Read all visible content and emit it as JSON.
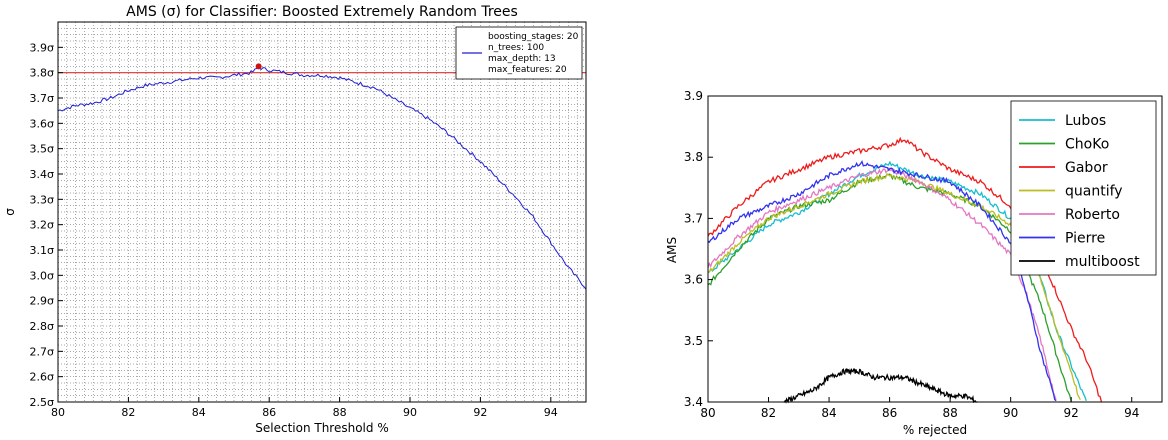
{
  "chart_data": [
    {
      "type": "line",
      "title": "AMS (σ) for Classifier: Boosted Extremely Random Trees",
      "xlabel": "Selection Threshold %",
      "ylabel": "σ",
      "xlim": [
        80,
        95
      ],
      "ylim": [
        2.5,
        4.0
      ],
      "x_ticks": [
        "80",
        "82",
        "84",
        "86",
        "88",
        "90",
        "92",
        "94"
      ],
      "y_ticks": [
        "2.5σ",
        "2.6σ",
        "2.7σ",
        "2.8σ",
        "2.9σ",
        "3.0σ",
        "3.1σ",
        "3.2σ",
        "3.3σ",
        "3.4σ",
        "3.5σ",
        "3.6σ",
        "3.7σ",
        "3.8σ",
        "3.9σ"
      ],
      "grid": true,
      "legend_position": "top-right",
      "legend_lines": [
        "boosting_stages: 20",
        "n_trees: 100",
        "max_depth: 13",
        "max_features: 20"
      ],
      "series": [
        {
          "color": "#1f1fd6",
          "x": [
            80.0,
            80.5,
            81.0,
            81.5,
            82.0,
            82.5,
            83.0,
            83.5,
            84.0,
            84.5,
            85.0,
            85.5,
            85.7,
            86.0,
            86.5,
            87.0,
            87.5,
            88.0,
            88.5,
            89.0,
            89.5,
            90.0,
            90.5,
            91.0,
            91.5,
            92.0,
            92.5,
            93.0,
            93.5,
            94.0,
            94.5,
            95.0
          ],
          "values": [
            3.65,
            3.67,
            3.68,
            3.7,
            3.73,
            3.75,
            3.76,
            3.77,
            3.78,
            3.78,
            3.79,
            3.8,
            3.82,
            3.81,
            3.8,
            3.79,
            3.79,
            3.78,
            3.76,
            3.74,
            3.7,
            3.66,
            3.62,
            3.57,
            3.51,
            3.45,
            3.38,
            3.31,
            3.23,
            3.13,
            3.03,
            2.95
          ]
        }
      ],
      "reference_line": {
        "y": 3.8,
        "color": "#e03030"
      },
      "marker": {
        "x": 85.7,
        "y": 3.825,
        "color": "#d01010"
      }
    },
    {
      "type": "line",
      "xlabel": "% rejected",
      "ylabel": "AMS",
      "xlim": [
        80,
        95
      ],
      "ylim": [
        3.4,
        3.9
      ],
      "x_ticks": [
        "80",
        "82",
        "84",
        "86",
        "88",
        "90",
        "92",
        "94"
      ],
      "y_ticks": [
        "3.4",
        "3.5",
        "3.6",
        "3.7",
        "3.8",
        "3.9"
      ],
      "grid": false,
      "legend_position": "top-right",
      "series": [
        {
          "name": "Lubos",
          "color": "#17becf",
          "x": [
            80,
            81,
            82,
            83,
            84,
            85,
            86,
            87,
            88,
            89,
            90,
            90.5,
            91,
            91.5,
            92,
            92.5
          ],
          "values": [
            3.61,
            3.65,
            3.69,
            3.71,
            3.74,
            3.77,
            3.79,
            3.77,
            3.76,
            3.74,
            3.7,
            3.65,
            3.6,
            3.52,
            3.46,
            3.4
          ]
        },
        {
          "name": "ChoKo",
          "color": "#2ca02c",
          "x": [
            80,
            81,
            82,
            83,
            84,
            85,
            86,
            87,
            88,
            89,
            90,
            90.5,
            91,
            91.5,
            92
          ],
          "values": [
            3.59,
            3.65,
            3.7,
            3.72,
            3.73,
            3.76,
            3.77,
            3.75,
            3.74,
            3.72,
            3.68,
            3.62,
            3.56,
            3.48,
            3.4
          ]
        },
        {
          "name": "Gabor",
          "color": "#ee1c1c",
          "x": [
            80,
            81,
            82,
            83,
            84,
            85,
            86,
            86.5,
            87,
            88,
            89,
            90,
            91,
            92,
            92.5,
            93
          ],
          "values": [
            3.67,
            3.72,
            3.76,
            3.78,
            3.8,
            3.81,
            3.82,
            3.83,
            3.81,
            3.78,
            3.76,
            3.72,
            3.64,
            3.52,
            3.47,
            3.4
          ]
        },
        {
          "name": "quantify",
          "color": "#bcbd22",
          "x": [
            80,
            81,
            82,
            83,
            84,
            85,
            86,
            87,
            88,
            89,
            90,
            90.5,
            91,
            91.5,
            92,
            92.3
          ],
          "values": [
            3.61,
            3.66,
            3.7,
            3.72,
            3.74,
            3.76,
            3.77,
            3.76,
            3.74,
            3.72,
            3.69,
            3.65,
            3.6,
            3.52,
            3.45,
            3.4
          ]
        },
        {
          "name": "Roberto",
          "color": "#e377c2",
          "x": [
            80,
            81,
            82,
            83,
            84,
            85,
            86,
            87,
            88,
            89,
            90,
            90.5,
            91,
            91.5
          ],
          "values": [
            3.62,
            3.67,
            3.71,
            3.73,
            3.75,
            3.77,
            3.78,
            3.76,
            3.73,
            3.69,
            3.64,
            3.58,
            3.5,
            3.4
          ]
        },
        {
          "name": "Pierre",
          "color": "#3333ee",
          "x": [
            80,
            81,
            82,
            83,
            84,
            85,
            86,
            87,
            88,
            89,
            90,
            90.5,
            91,
            91.5
          ],
          "values": [
            3.66,
            3.7,
            3.72,
            3.74,
            3.77,
            3.79,
            3.78,
            3.77,
            3.76,
            3.72,
            3.66,
            3.58,
            3.48,
            3.4
          ]
        },
        {
          "name": "multiboost",
          "color": "#000000",
          "x": [
            82.5,
            83,
            83.5,
            84,
            84.5,
            85,
            85.5,
            86,
            86.5,
            87,
            87.5,
            88,
            88.5,
            88.9
          ],
          "values": [
            3.4,
            3.41,
            3.42,
            3.44,
            3.45,
            3.45,
            3.44,
            3.44,
            3.44,
            3.43,
            3.42,
            3.41,
            3.41,
            3.4
          ]
        }
      ]
    }
  ]
}
